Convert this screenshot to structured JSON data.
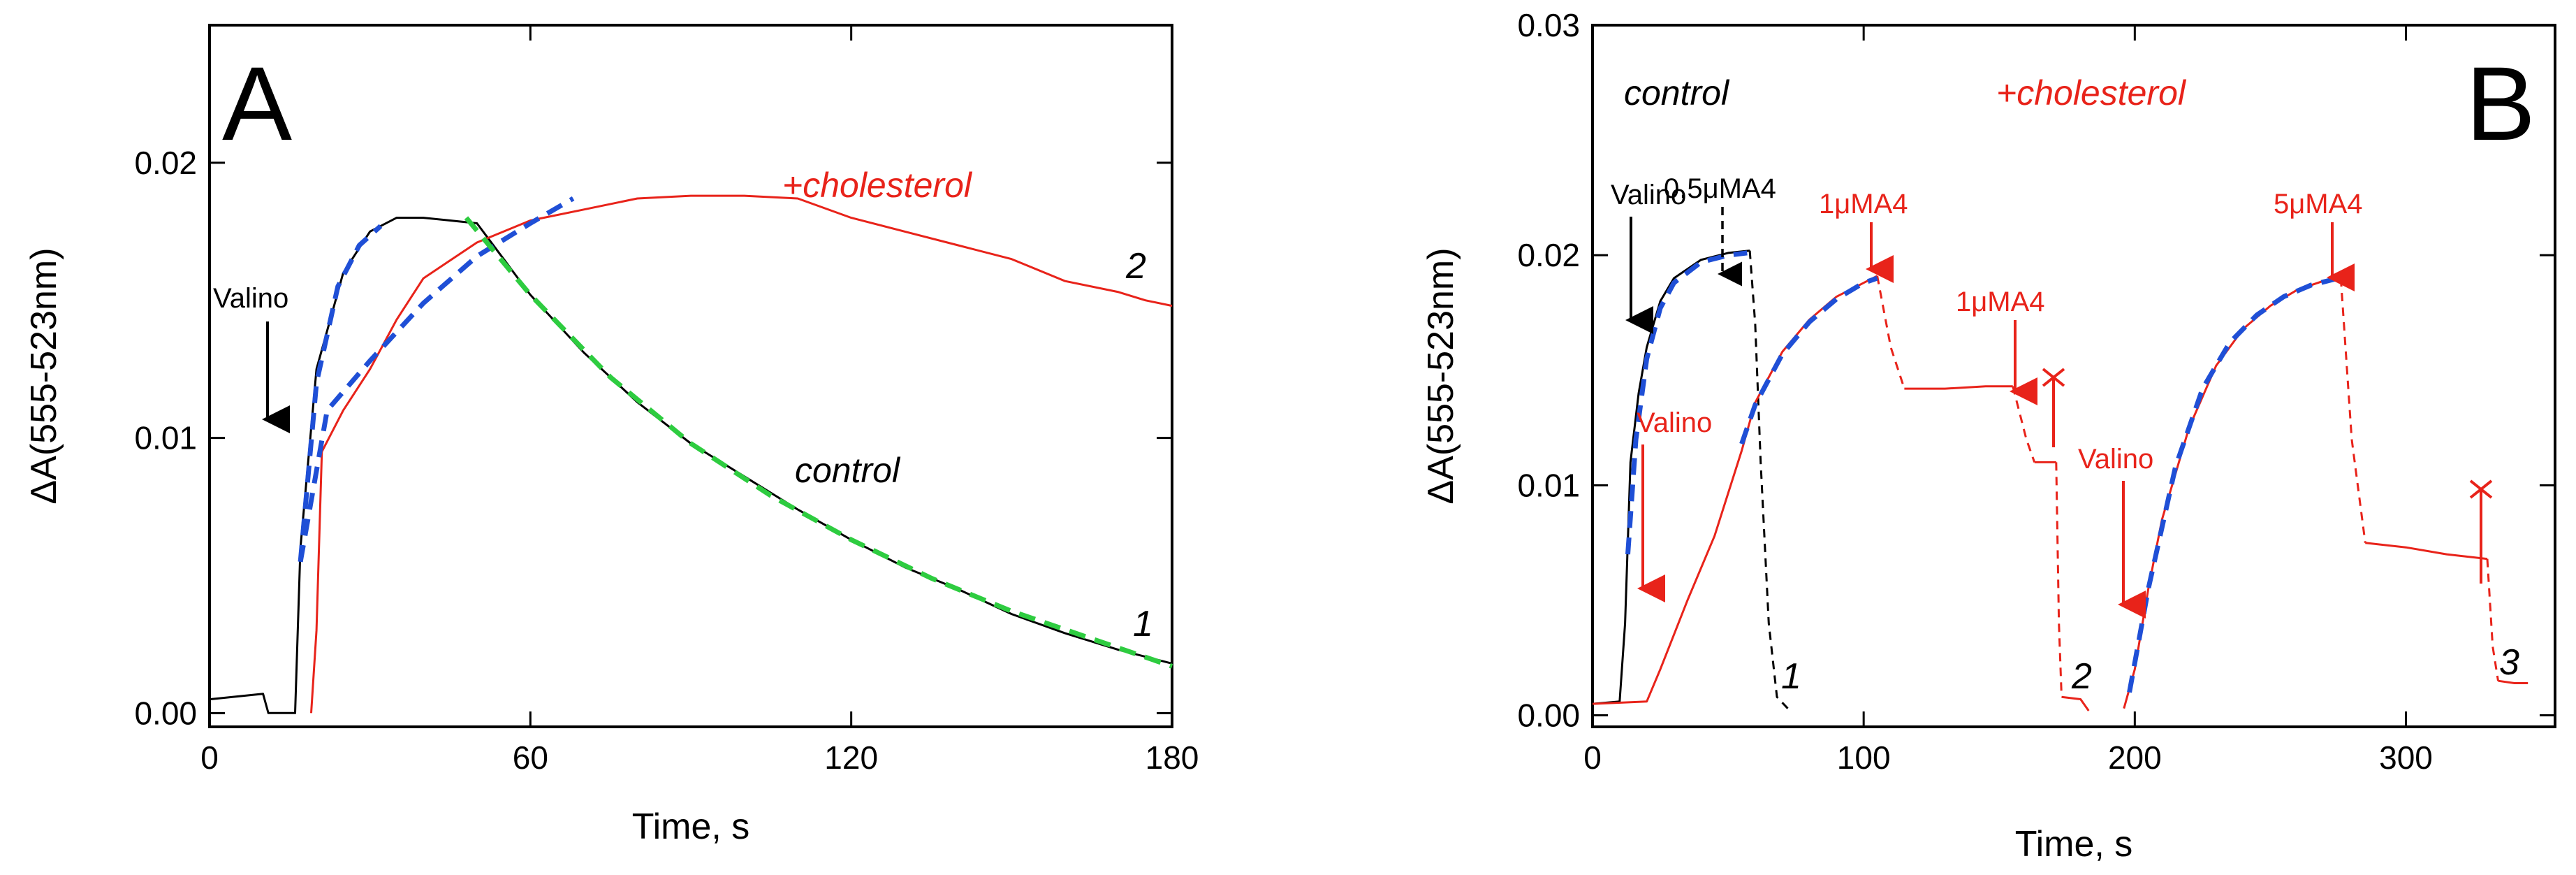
{
  "chart_data": [
    {
      "panel": "A",
      "type": "line",
      "xlabel": "Time, s",
      "ylabel": "ΔA(555-523nm)",
      "xlim": [
        0,
        180
      ],
      "ylim": [
        -0.0005,
        0.025
      ],
      "xticks": [
        0,
        60,
        120,
        180
      ],
      "xtick_labels": [
        "0",
        "60",
        "120",
        "180"
      ],
      "yticks": [
        0.0,
        0.01,
        0.02
      ],
      "ytick_labels": [
        "0.00",
        "0.01",
        "0.02"
      ],
      "series": [
        {
          "name": "control",
          "label": "1",
          "color": "#000000",
          "style": "solid",
          "x": [
            0,
            10,
            11,
            15,
            16,
            17,
            20,
            25,
            30,
            35,
            40,
            45,
            50,
            55,
            60,
            70,
            80,
            90,
            100,
            110,
            120,
            130,
            140,
            150,
            160,
            170,
            180
          ],
          "y": [
            0.0005,
            0.0007,
            0.0,
            0.0,
            0.0,
            0.006,
            0.0125,
            0.016,
            0.0175,
            0.018,
            0.018,
            0.0179,
            0.0178,
            0.0165,
            0.0152,
            0.0131,
            0.0113,
            0.0098,
            0.0086,
            0.0074,
            0.0063,
            0.0053,
            0.0045,
            0.0036,
            0.0029,
            0.0023,
            0.0018
          ]
        },
        {
          "name": "+cholesterol",
          "label": "2",
          "color": "#e8231a",
          "style": "solid",
          "x": [
            19,
            20,
            21,
            25,
            30,
            35,
            40,
            50,
            60,
            70,
            80,
            90,
            100,
            110,
            120,
            130,
            140,
            150,
            160,
            170,
            175,
            180
          ],
          "y": [
            0.0,
            0.003,
            0.0095,
            0.011,
            0.0125,
            0.0143,
            0.0158,
            0.0171,
            0.0179,
            0.0183,
            0.0187,
            0.0188,
            0.0188,
            0.0187,
            0.018,
            0.0175,
            0.017,
            0.0165,
            0.0157,
            0.0153,
            0.015,
            0.0148
          ]
        },
        {
          "name": "fit-rise-control",
          "color": "#1f4fd6",
          "style": "dashed",
          "x": [
            17,
            20,
            24,
            28,
            32
          ],
          "y": [
            0.0055,
            0.012,
            0.0155,
            0.017,
            0.0177
          ]
        },
        {
          "name": "fit-rise-cholesterol",
          "color": "#1f4fd6",
          "style": "dashed",
          "x": [
            17,
            22,
            30,
            40,
            50,
            60,
            68
          ],
          "y": [
            0.0055,
            0.011,
            0.0128,
            0.0149,
            0.0166,
            0.0178,
            0.0187
          ]
        },
        {
          "name": "fit-decay-control",
          "color": "#2ecc40",
          "style": "dashed",
          "x": [
            48,
            60,
            75,
            90,
            105,
            120,
            135,
            150,
            165,
            180
          ],
          "y": [
            0.018,
            0.0152,
            0.0122,
            0.0098,
            0.0079,
            0.0063,
            0.0049,
            0.0037,
            0.0027,
            0.0017
          ]
        }
      ],
      "annotations": {
        "panel_letter": "A",
        "valino": "Valino",
        "cholesterol": "+cholesterol",
        "control": "control",
        "curve1": "1",
        "curve2": "2"
      }
    },
    {
      "panel": "B",
      "type": "line",
      "xlabel": "Time, s",
      "ylabel": "ΔA(555-523nm)",
      "xlim": [
        0,
        355
      ],
      "ylim": [
        -0.0005,
        0.03
      ],
      "xticks": [
        0,
        100,
        200,
        300
      ],
      "xtick_labels": [
        "0",
        "100",
        "200",
        "300"
      ],
      "yticks": [
        0.0,
        0.01,
        0.02,
        0.03
      ],
      "ytick_labels": [
        "0.00",
        "0.01",
        "0.02",
        "0.03"
      ],
      "series": [
        {
          "name": "control",
          "label": "1",
          "color": "#000000",
          "style": "solid",
          "x": [
            0,
            10,
            12,
            14,
            17,
            20,
            25,
            30,
            40,
            50,
            58
          ],
          "y": [
            0.0005,
            0.0006,
            0.004,
            0.011,
            0.014,
            0.016,
            0.018,
            0.019,
            0.0198,
            0.0201,
            0.0202
          ]
        },
        {
          "name": "control-drop",
          "color": "#000000",
          "style": "dashed",
          "x": [
            58,
            60,
            62,
            65,
            68,
            72
          ],
          "y": [
            0.0202,
            0.017,
            0.011,
            0.004,
            0.0008,
            0.0003
          ]
        },
        {
          "name": "cholesterol-1",
          "color": "#e8231a",
          "style": "solid",
          "x": [
            0,
            20,
            25,
            35,
            45,
            55,
            60,
            70,
            80,
            90,
            100,
            105
          ],
          "y": [
            0.0005,
            0.0006,
            0.002,
            0.005,
            0.0078,
            0.0115,
            0.0136,
            0.0158,
            0.0172,
            0.0182,
            0.0188,
            0.0191
          ]
        },
        {
          "name": "cholesterol-drop-1",
          "color": "#e8231a",
          "style": "dashed",
          "x": [
            105,
            110,
            115
          ],
          "y": [
            0.0191,
            0.016,
            0.0142
          ]
        },
        {
          "name": "cholesterol-plateau-1",
          "color": "#e8231a",
          "style": "solid",
          "x": [
            115,
            130,
            145,
            155
          ],
          "y": [
            0.0142,
            0.0142,
            0.0143,
            0.0143
          ]
        },
        {
          "name": "cholesterol-drop-2",
          "color": "#e8231a",
          "style": "dashed",
          "x": [
            155,
            160,
            163
          ],
          "y": [
            0.0143,
            0.012,
            0.011
          ]
        },
        {
          "name": "cholesterol-plateau-2",
          "color": "#e8231a",
          "style": "solid",
          "x": [
            163,
            168,
            171
          ],
          "y": [
            0.011,
            0.011,
            0.011
          ]
        },
        {
          "name": "cholesterol-drop-3",
          "color": "#e8231a",
          "style": "dashed",
          "x": [
            171,
            172,
            173
          ],
          "y": [
            0.011,
            0.004,
            0.0008
          ]
        },
        {
          "name": "cholesterol-plateau-3",
          "color": "#e8231a",
          "style": "solid",
          "x": [
            173,
            180,
            183
          ],
          "y": [
            0.0008,
            0.0007,
            0.0002
          ]
        },
        {
          "name": "cholesterol-2",
          "color": "#e8231a",
          "style": "solid",
          "x": [
            196,
            200,
            205,
            210,
            220,
            230,
            240,
            250,
            260,
            270,
            276
          ],
          "y": [
            0.0003,
            0.002,
            0.0055,
            0.0085,
            0.0125,
            0.0152,
            0.0168,
            0.0178,
            0.0185,
            0.0189,
            0.019
          ]
        },
        {
          "name": "cholesterol-drop-4",
          "color": "#e8231a",
          "style": "dashed",
          "x": [
            276,
            280,
            285
          ],
          "y": [
            0.019,
            0.012,
            0.0075
          ]
        },
        {
          "name": "cholesterol-plateau-4",
          "color": "#e8231a",
          "style": "solid",
          "x": [
            285,
            300,
            315,
            330
          ],
          "y": [
            0.0075,
            0.0073,
            0.007,
            0.0068
          ]
        },
        {
          "name": "cholesterol-drop-5",
          "color": "#e8231a",
          "style": "dashed",
          "x": [
            330,
            332,
            334
          ],
          "y": [
            0.0068,
            0.003,
            0.0015
          ]
        },
        {
          "name": "cholesterol-plateau-5",
          "color": "#e8231a",
          "style": "solid",
          "x": [
            334,
            340,
            345
          ],
          "y": [
            0.0015,
            0.0014,
            0.0014
          ]
        },
        {
          "name": "fit-control",
          "color": "#1f4fd6",
          "style": "dashed",
          "x": [
            13,
            16,
            20,
            25,
            30,
            40,
            50,
            57
          ],
          "y": [
            0.007,
            0.012,
            0.0155,
            0.0177,
            0.0188,
            0.0197,
            0.02,
            0.0201
          ]
        },
        {
          "name": "fit-cholesterol-1",
          "color": "#1f4fd6",
          "style": "dashed",
          "x": [
            55,
            60,
            70,
            80,
            90,
            100,
            105
          ],
          "y": [
            0.0118,
            0.0135,
            0.0157,
            0.0171,
            0.0181,
            0.0188,
            0.019
          ]
        },
        {
          "name": "fit-cholesterol-2",
          "color": "#1f4fd6",
          "style": "dashed",
          "x": [
            198,
            205,
            215,
            225,
            235,
            245,
            255,
            265,
            275
          ],
          "y": [
            0.001,
            0.0055,
            0.0108,
            0.0142,
            0.0162,
            0.0174,
            0.0182,
            0.0187,
            0.019
          ]
        }
      ],
      "annotations": {
        "panel_letter": "B",
        "control": "control",
        "cholesterol": "+cholesterol",
        "valino_black": "Valino",
        "ma4_05": "0.5μMA4",
        "ma4_1a": "1μMA4",
        "ma4_1b": "1μMA4",
        "ma4_5": "5μMA4",
        "valino_red1": "Valino",
        "valino_red2": "Valino",
        "curve1": "1",
        "curve2": "2",
        "curve3": "3"
      }
    }
  ]
}
